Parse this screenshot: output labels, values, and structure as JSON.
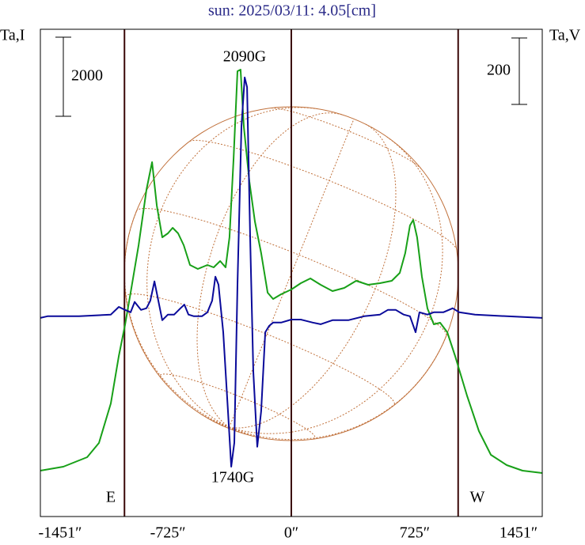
{
  "chart_data": {
    "type": "line",
    "title": "sun: 2025/03/11: 4.05[cm]",
    "ylabel": "Ta,I",
    "y2label": "Ta,V",
    "xlim": [
      -1474,
      1474
    ],
    "ylim": [
      0,
      12320
    ],
    "y2lim": [
      -598,
      869
    ],
    "xticks": [
      {
        "value": -1451,
        "label": "-1451″"
      },
      {
        "value": -725,
        "label": "-725″"
      },
      {
        "value": 0,
        "label": "0″"
      },
      {
        "value": 725,
        "label": "725″"
      },
      {
        "value": 1451,
        "label": "1451″"
      }
    ],
    "vlines": [
      -980,
      0,
      980
    ],
    "scale_bars": [
      {
        "value": 2000,
        "axis": "y"
      },
      {
        "value": 200,
        "axis": "y2"
      }
    ],
    "annotations": [
      "2090G",
      "1740G",
      "E",
      "W"
    ],
    "series": [
      {
        "name": "I",
        "color": "#18a018",
        "axis": "y",
        "x": [
          -1474,
          -1339,
          -1199,
          -1130,
          -1060,
          -1013,
          -976,
          -944,
          -897,
          -851,
          -818,
          -790,
          -758,
          -725,
          -697,
          -665,
          -632,
          -595,
          -549,
          -493,
          -456,
          -418,
          -386,
          -363,
          -339,
          -316,
          -298,
          -279,
          -246,
          -214,
          -177,
          -139,
          -107,
          -60,
          0,
          56,
          112,
          172,
          242,
          311,
          381,
          451,
          521,
          590,
          637,
          669,
          697,
          716,
          739,
          767,
          800,
          837,
          874,
          916,
          962,
          1032,
          1102,
          1172,
          1265,
          1358,
          1474
        ],
        "values": [
          1160,
          1260,
          1500,
          1860,
          2860,
          4060,
          4860,
          5660,
          6860,
          8260,
          8960,
          7860,
          7060,
          7160,
          7300,
          7160,
          6860,
          6360,
          6260,
          6360,
          6300,
          6460,
          6300,
          7060,
          9060,
          11260,
          11300,
          9860,
          8460,
          7460,
          6660,
          5660,
          5500,
          5620,
          5740,
          5900,
          6020,
          5860,
          5700,
          5780,
          5960,
          5860,
          5900,
          5960,
          6160,
          6660,
          7360,
          7500,
          7060,
          6060,
          5260,
          4860,
          4900,
          4660,
          4060,
          3060,
          2160,
          1560,
          1300,
          1160,
          1100
        ]
      },
      {
        "name": "V",
        "color": "#0a0a9a",
        "axis": "y2",
        "x": [
          -1474,
          -1432,
          -1246,
          -1060,
          -1013,
          -976,
          -944,
          -920,
          -883,
          -851,
          -828,
          -804,
          -781,
          -758,
          -725,
          -688,
          -651,
          -628,
          -604,
          -572,
          -525,
          -493,
          -465,
          -446,
          -428,
          -400,
          -372,
          -353,
          -335,
          -316,
          -293,
          -274,
          -260,
          -242,
          -223,
          -200,
          -177,
          -153,
          -130,
          -107,
          -60,
          0,
          56,
          126,
          172,
          242,
          335,
          428,
          521,
          567,
          614,
          660,
          697,
          730,
          753,
          800,
          837,
          893,
          948,
          986,
          1079,
          1265,
          1474
        ],
        "values": [
          0,
          5,
          5,
          10,
          33,
          24,
          17,
          48,
          24,
          29,
          52,
          110,
          52,
          -7,
          10,
          10,
          29,
          40,
          10,
          5,
          5,
          17,
          52,
          124,
          100,
          -43,
          -281,
          -448,
          -376,
          100,
          576,
          724,
          695,
          243,
          -162,
          -388,
          -281,
          -43,
          -24,
          -14,
          -14,
          -5,
          -5,
          -14,
          -19,
          -7,
          -7,
          5,
          10,
          24,
          24,
          10,
          5,
          -43,
          17,
          10,
          17,
          17,
          29,
          17,
          10,
          5,
          0
        ]
      }
    ]
  }
}
